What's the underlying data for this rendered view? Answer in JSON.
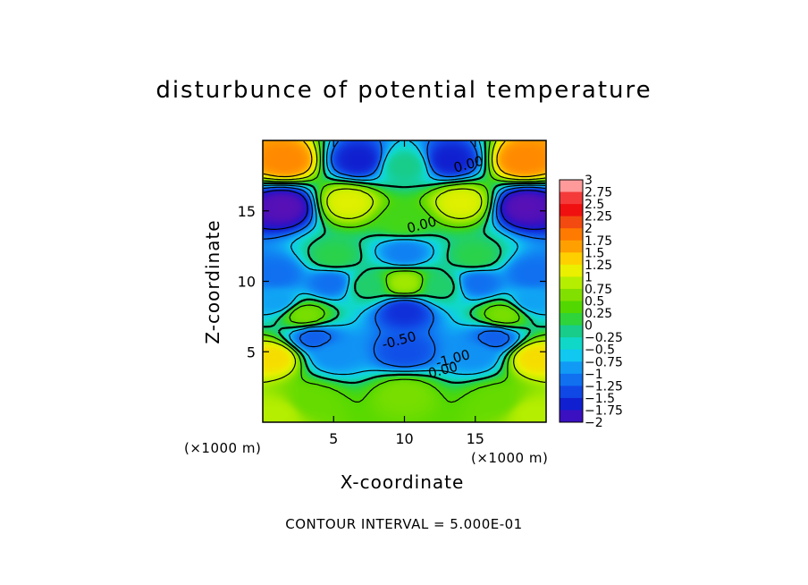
{
  "chart_data": {
    "type": "heatmap",
    "title": "disturbunce of potential temperature",
    "xlabel": "X-coordinate",
    "ylabel": "Z-coordinate",
    "x_unit_label": "(×1000 m)",
    "y_unit_label": "(×1000 m)",
    "footer": "CONTOUR INTERVAL = 5.000E-01",
    "xlim": [
      0,
      20
    ],
    "ylim": [
      0,
      20
    ],
    "x_ticks": [
      5,
      10,
      15
    ],
    "x_tick_labels": [
      "5",
      "10",
      "15"
    ],
    "y_ticks": [
      5,
      10,
      15
    ],
    "y_tick_labels": [
      "5",
      "10",
      "15"
    ],
    "contour_interval": 0.5,
    "contour_labels": [
      {
        "text": "0.00",
        "x": 14.6,
        "z": 18.0
      },
      {
        "text": "0.00",
        "x": 11.3,
        "z": 13.7
      },
      {
        "text": "-0.50",
        "x": 9.7,
        "z": 5.5
      },
      {
        "text": "-1.00",
        "x": 13.5,
        "z": 4.2
      },
      {
        "text": "0.00",
        "x": 12.8,
        "z": 3.4
      }
    ],
    "colorbar": {
      "range": [
        -2,
        3
      ],
      "labels": [
        "3",
        "2.75",
        "2.5",
        "2.25",
        "2",
        "1.75",
        "1.5",
        "1.25",
        "1",
        "0.75",
        "0.5",
        "0.25",
        "0",
        "−0.25",
        "−0.5",
        "−0.75",
        "−1",
        "−1.25",
        "−1.5",
        "−1.75",
        "−2"
      ],
      "colors": [
        "#ff9a9a",
        "#f53a3a",
        "#f01010",
        "#f24a10",
        "#ff7a00",
        "#ff9f00",
        "#ffd000",
        "#eaf000",
        "#b5ee00",
        "#82e000",
        "#52d800",
        "#2ed43a",
        "#18cc8a",
        "#10d8c8",
        "#10c8f0",
        "#109af5",
        "#1070f0",
        "#1048e6",
        "#1020d0",
        "#3a10c0",
        "#6a10b0"
      ]
    },
    "field_features": [
      {
        "x": 1.6,
        "z": 18.6,
        "value": 1.9
      },
      {
        "x": 18.4,
        "z": 18.6,
        "value": 1.9
      },
      {
        "x": 6.8,
        "z": 18.6,
        "value": -1.5
      },
      {
        "x": 13.2,
        "z": 18.6,
        "value": -1.5
      },
      {
        "x": 10.0,
        "z": 18.2,
        "value": 0.0
      },
      {
        "x": 1.5,
        "z": 15.3,
        "value": -1.9
      },
      {
        "x": 18.5,
        "z": 15.3,
        "value": -1.9
      },
      {
        "x": 6.0,
        "z": 15.6,
        "value": 1.2
      },
      {
        "x": 14.0,
        "z": 15.6,
        "value": 1.2
      },
      {
        "x": 10.0,
        "z": 14.2,
        "value": 0.4
      },
      {
        "x": 10.0,
        "z": 12.0,
        "value": -0.9
      },
      {
        "x": 5.0,
        "z": 11.7,
        "value": 0.2
      },
      {
        "x": 15.0,
        "z": 11.7,
        "value": 0.2
      },
      {
        "x": 1.0,
        "z": 10.5,
        "value": -1.0
      },
      {
        "x": 19.0,
        "z": 10.5,
        "value": -1.0
      },
      {
        "x": 4.8,
        "z": 9.9,
        "value": -1.0
      },
      {
        "x": 15.2,
        "z": 9.9,
        "value": -1.0
      },
      {
        "x": 10.0,
        "z": 9.9,
        "value": 0.9
      },
      {
        "x": 7.4,
        "z": 9.7,
        "value": 0.1
      },
      {
        "x": 12.6,
        "z": 9.7,
        "value": 0.1
      },
      {
        "x": 10.0,
        "z": 7.9,
        "value": -1.4
      },
      {
        "x": 3.0,
        "z": 7.6,
        "value": 0.7
      },
      {
        "x": 17.0,
        "z": 7.6,
        "value": 0.7
      },
      {
        "x": 1.0,
        "z": 8.6,
        "value": -0.7
      },
      {
        "x": 19.0,
        "z": 8.6,
        "value": -0.7
      },
      {
        "x": 3.6,
        "z": 6.0,
        "value": -1.1
      },
      {
        "x": 16.4,
        "z": 6.0,
        "value": -1.1
      },
      {
        "x": 10.0,
        "z": 5.0,
        "value": -1.2
      },
      {
        "x": 5.0,
        "z": 4.8,
        "value": -0.8
      },
      {
        "x": 15.0,
        "z": 4.8,
        "value": -0.8
      },
      {
        "x": 0.8,
        "z": 4.6,
        "value": 1.4
      },
      {
        "x": 19.2,
        "z": 4.6,
        "value": 1.4
      },
      {
        "x": 10.0,
        "z": 2.0,
        "value": 0.7
      },
      {
        "x": 3.5,
        "z": 1.5,
        "value": 0.6
      },
      {
        "x": 16.5,
        "z": 1.5,
        "value": 0.6
      },
      {
        "x": 1.0,
        "z": 0.6,
        "value": 1.0
      },
      {
        "x": 19.0,
        "z": 0.6,
        "value": 1.0
      }
    ]
  }
}
